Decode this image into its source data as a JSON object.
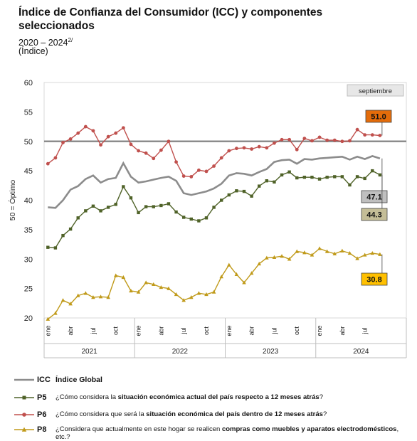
{
  "title": "Índice de Confianza del Consumidor (ICC) y componentes seleccionados",
  "subtitle": "2020 – 2024",
  "subtitle_sup": "2/",
  "units": "(Índice)",
  "chart_data": {
    "type": "line",
    "ylim": [
      20,
      60
    ],
    "yticks": [
      20,
      25,
      30,
      35,
      40,
      45,
      50,
      55,
      60
    ],
    "reference_line": 50,
    "reference_label": "50 = Óptimo",
    "month_labels": [
      "ene",
      "abr",
      "jul",
      "oct",
      "ene",
      "abr",
      "jul",
      "oct",
      "ene",
      "abr",
      "jul",
      "oct",
      "ene",
      "abr",
      "jul"
    ],
    "month_label_index": [
      0,
      3,
      6,
      9,
      12,
      15,
      18,
      21,
      24,
      27,
      30,
      33,
      36,
      39,
      42
    ],
    "years": [
      "2021",
      "2022",
      "2023",
      "2024"
    ],
    "last_month_label": "septiembre",
    "series": [
      {
        "code": "ICC",
        "color": "#8c8c8c",
        "marker": "none",
        "values": [
          38.8,
          38.7,
          40.0,
          41.8,
          42.4,
          43.6,
          44.2,
          43.0,
          43.6,
          43.8,
          46.3,
          44.0,
          43.0,
          43.2,
          43.5,
          43.8,
          44.0,
          43.3,
          41.2,
          40.9,
          41.2,
          41.5,
          42.0,
          42.8,
          44.2,
          44.6,
          44.5,
          44.2,
          44.8,
          45.3,
          46.5,
          46.8,
          46.9,
          46.2,
          47.0,
          46.9,
          47.1,
          47.2,
          47.3,
          47.4,
          46.9,
          47.4,
          47.0,
          47.5,
          47.1
        ],
        "end_label": "47.1",
        "end_label_bg": "#bfbfbf"
      },
      {
        "code": "P5",
        "color": "#4f6228",
        "marker": "square",
        "values": [
          32.0,
          31.9,
          34.0,
          35.1,
          37.0,
          38.2,
          39.0,
          38.2,
          38.8,
          39.3,
          42.3,
          40.4,
          37.9,
          38.9,
          38.9,
          39.1,
          39.4,
          38.0,
          37.1,
          36.8,
          36.5,
          37.0,
          38.8,
          40.0,
          40.9,
          41.6,
          41.5,
          40.7,
          42.4,
          43.3,
          43.1,
          44.3,
          44.8,
          43.8,
          43.9,
          43.9,
          43.6,
          43.9,
          44.0,
          44.0,
          42.6,
          44.0,
          43.7,
          45.0,
          44.3
        ],
        "end_label": "44.3",
        "end_label_bg": "#c4bd97"
      },
      {
        "code": "P6",
        "color": "#c0504d",
        "marker": "circle",
        "values": [
          46.2,
          47.2,
          49.8,
          50.4,
          51.4,
          52.5,
          51.8,
          49.4,
          50.8,
          51.4,
          52.3,
          49.5,
          48.4,
          48.0,
          47.1,
          48.5,
          50.0,
          46.5,
          44.1,
          44.0,
          45.1,
          44.9,
          45.8,
          47.2,
          48.4,
          48.8,
          48.9,
          48.7,
          49.1,
          48.9,
          49.7,
          50.3,
          50.3,
          48.6,
          50.5,
          50.1,
          50.7,
          50.2,
          50.2,
          50.0,
          50.1,
          52.0,
          51.1,
          51.1,
          51.0
        ],
        "end_label": "51.0",
        "end_label_bg": "#e46c0a"
      },
      {
        "code": "P8",
        "color": "#c09a1a",
        "marker": "triangle",
        "values": [
          19.8,
          20.8,
          23.0,
          22.4,
          23.8,
          24.2,
          23.5,
          23.6,
          23.5,
          27.2,
          26.9,
          24.6,
          24.4,
          26.0,
          25.7,
          25.2,
          25.0,
          24.0,
          23.0,
          23.5,
          24.2,
          24.0,
          24.4,
          27.0,
          29.0,
          27.4,
          26.0,
          27.6,
          29.2,
          30.2,
          30.3,
          30.5,
          30.0,
          31.3,
          31.1,
          30.7,
          31.8,
          31.3,
          30.9,
          31.4,
          31.0,
          30.1,
          30.7,
          31.0,
          30.8
        ],
        "end_label": "30.8",
        "end_label_bg": "#ffc000"
      }
    ]
  },
  "legend": [
    {
      "code": "ICC",
      "text_plain": "",
      "text_bold": "Índice Global",
      "text_plain2": "",
      "text_bold2": "",
      "text_plain3": ""
    },
    {
      "code": "P5",
      "text_plain": "¿Cómo considera la ",
      "text_bold": "situación económica actual del país respecto a 12 meses atrás",
      "text_plain2": "?",
      "text_bold2": "",
      "text_plain3": ""
    },
    {
      "code": "P6",
      "text_plain": "¿Cómo considera que será la ",
      "text_bold": "situación económica del país dentro de 12 meses atrás",
      "text_plain2": "?",
      "text_bold2": "",
      "text_plain3": ""
    },
    {
      "code": "P8",
      "text_plain": "¿Considera que actualmente en este hogar se realicen ",
      "text_bold": "compras como muebles y aparatos electrodomésticos",
      "text_plain2": ", etc.?",
      "text_bold2": "",
      "text_plain3": ""
    }
  ]
}
